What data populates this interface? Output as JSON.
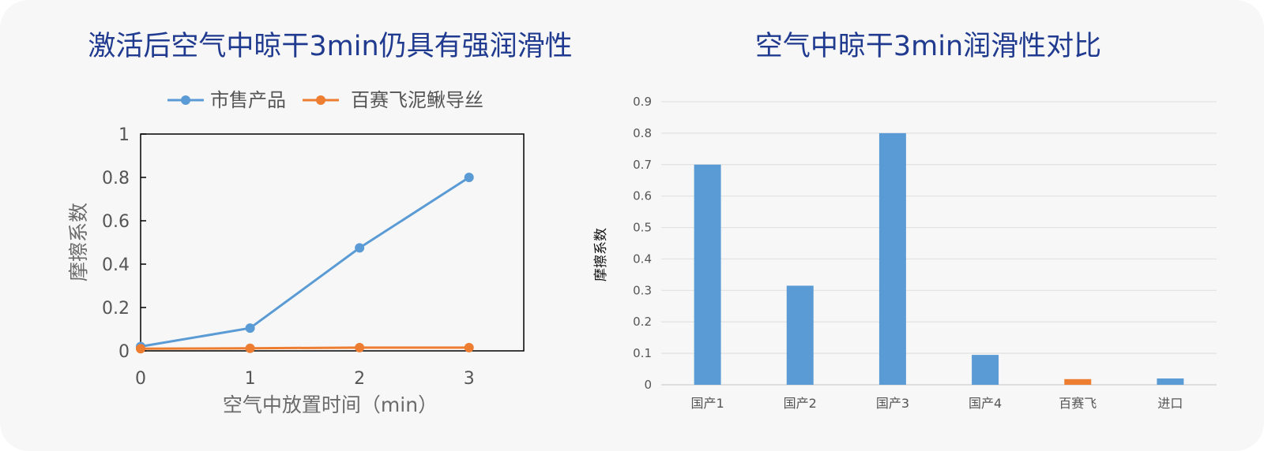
{
  "chart_data": [
    {
      "type": "line",
      "title": "激活后空气中晾干3min仍具有强润滑性",
      "xlabel": "空气中放置时间（min）",
      "ylabel": "摩擦系数",
      "x": [
        0,
        1,
        2,
        3
      ],
      "xticks": [
        "0",
        "1",
        "2",
        "3"
      ],
      "yticks": [
        "0",
        "0.2",
        "0.4",
        "0.6",
        "0.8",
        "1"
      ],
      "xlim": [
        0,
        3.5
      ],
      "ylim": [
        0,
        1
      ],
      "legend_position": "top",
      "series": [
        {
          "name": "市售产品",
          "values": [
            0.02,
            0.105,
            0.475,
            0.8
          ],
          "color": "#5b9bd5"
        },
        {
          "name": "百赛飞泥鳅导丝",
          "values": [
            0.01,
            0.012,
            0.015,
            0.015
          ],
          "color": "#ed7d31"
        }
      ]
    },
    {
      "type": "bar",
      "title": "空气中晾干3min润滑性对比",
      "xlabel": "",
      "ylabel": "摩擦系数",
      "categories": [
        "国产1",
        "国产2",
        "国产3",
        "国产4",
        "百赛飞",
        "进口"
      ],
      "values": [
        0.7,
        0.315,
        0.8,
        0.095,
        0.018,
        0.02
      ],
      "bar_colors": [
        "#5b9bd5",
        "#5b9bd5",
        "#5b9bd5",
        "#5b9bd5",
        "#ed7d31",
        "#5b9bd5"
      ],
      "yticks": [
        "0",
        "0.1",
        "0.2",
        "0.3",
        "0.4",
        "0.5",
        "0.6",
        "0.7",
        "0.8",
        "0.9"
      ],
      "ylim": [
        0,
        0.9
      ],
      "grid": true
    }
  ]
}
